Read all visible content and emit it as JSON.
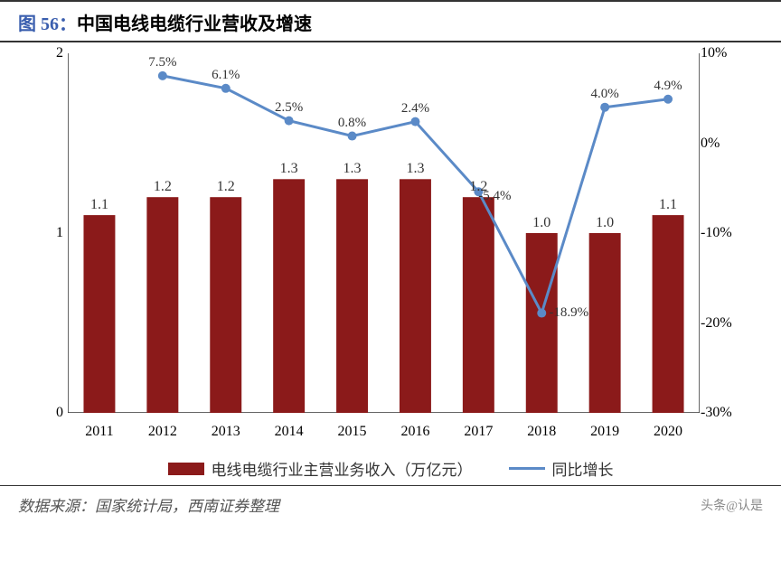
{
  "title": {
    "prefix": "图 56：",
    "text": "中国电线电缆行业营收及增速"
  },
  "source": "数据来源：国家统计局，西南证券整理",
  "watermark": "头条@认是",
  "chart": {
    "type": "bar+line",
    "categories": [
      "2011",
      "2012",
      "2013",
      "2014",
      "2015",
      "2016",
      "2017",
      "2018",
      "2019",
      "2020"
    ],
    "bar": {
      "values": [
        1.1,
        1.2,
        1.2,
        1.3,
        1.3,
        1.3,
        1.2,
        1.0,
        1.0,
        1.1
      ],
      "labels": [
        "1.1",
        "1.2",
        "1.2",
        "1.3",
        "1.3",
        "1.3",
        "1.2",
        "1.0",
        "1.0",
        "1.1"
      ],
      "color": "#8b1a1a",
      "width_ratio": 0.5
    },
    "line": {
      "values": [
        null,
        7.5,
        6.1,
        2.5,
        0.8,
        2.4,
        -5.4,
        -18.9,
        4.0,
        4.9
      ],
      "labels": [
        null,
        "7.5%",
        "6.1%",
        "2.5%",
        "0.8%",
        "2.4%",
        "-5.4%",
        "-18.9%",
        "4.0%",
        "4.9%"
      ],
      "color": "#5b8ac7",
      "marker_size": 5
    },
    "y_left": {
      "min": 0,
      "max": 2,
      "ticks": [
        0,
        1,
        2
      ]
    },
    "y_right": {
      "min": -30,
      "max": 10,
      "ticks": [
        -30,
        -20,
        -10,
        0,
        10
      ],
      "suffix": "%"
    },
    "legend": {
      "bar_label": "电线电缆行业主营业务收入（万亿元）",
      "line_label": "同比增长"
    },
    "axis_color": "#333333",
    "background_color": "#ffffff",
    "label_fontsize": 16
  }
}
